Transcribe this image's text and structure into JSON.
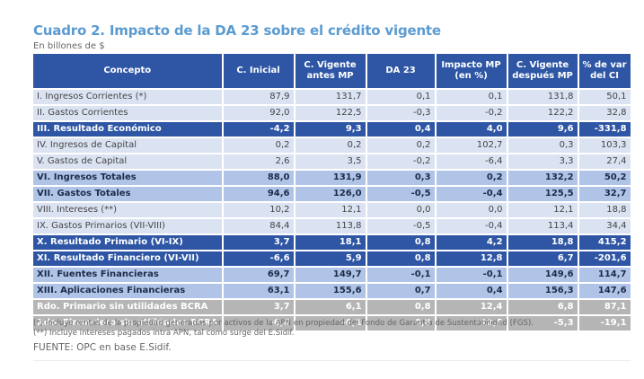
{
  "title": "Cuadro 2. Impacto de la DA 23 sobre el crédito vigente",
  "subtitle": "En billones de $",
  "table": {
    "headers": [
      "Concepto",
      "C. Inicial",
      "C. Vigente antes MP",
      "DA 23",
      "Impacto MP (en %)",
      "C. Vigente después MP",
      "% de var del CI"
    ],
    "rows": [
      {
        "style": "normal",
        "cells": [
          "I. Ingresos Corrientes (*)",
          "87,9",
          "131,7",
          "0,1",
          "0,1",
          "131,8",
          "50,1"
        ]
      },
      {
        "style": "normal",
        "cells": [
          "II. Gastos Corrientes",
          "92,0",
          "122,5",
          "-0,3",
          "-0,2",
          "122,2",
          "32,8"
        ]
      },
      {
        "style": "dark",
        "cells": [
          "III. Resultado Económico",
          "-4,2",
          "9,3",
          "0,4",
          "4,0",
          "9,6",
          "-331,8"
        ]
      },
      {
        "style": "normal",
        "cells": [
          "IV. Ingresos de Capital",
          "0,2",
          "0,2",
          "0,2",
          "102,7",
          "0,3",
          "103,3"
        ]
      },
      {
        "style": "normal",
        "cells": [
          "V. Gastos de Capital",
          "2,6",
          "3,5",
          "-0,2",
          "-6,4",
          "3,3",
          "27,4"
        ]
      },
      {
        "style": "sub",
        "cells": [
          "VI. Ingresos Totales",
          "88,0",
          "131,9",
          "0,3",
          "0,2",
          "132,2",
          "50,2"
        ]
      },
      {
        "style": "sub",
        "cells": [
          "VII. Gastos Totales",
          "94,6",
          "126,0",
          "-0,5",
          "-0,4",
          "125,5",
          "32,7"
        ]
      },
      {
        "style": "normal",
        "cells": [
          "VIII. Intereses (**)",
          "10,2",
          "12,1",
          "0,0",
          "0,0",
          "12,1",
          "18,8"
        ]
      },
      {
        "style": "normal",
        "cells": [
          "IX. Gastos Primarios (VII-VIII)",
          "84,4",
          "113,8",
          "-0,5",
          "-0,4",
          "113,4",
          "34,4"
        ]
      },
      {
        "style": "dark",
        "cells": [
          "X. Resultado Primario (VI-IX)",
          "3,7",
          "18,1",
          "0,8",
          "4,2",
          "18,8",
          "415,2"
        ]
      },
      {
        "style": "dark",
        "cells": [
          "XI. Resultado Financiero (VI-VII)",
          "-6,6",
          "5,9",
          "0,8",
          "12,8",
          "6,7",
          "-201,6"
        ]
      },
      {
        "style": "sub",
        "cells": [
          "XII. Fuentes Financieras",
          "69,7",
          "149,7",
          "-0,1",
          "-0,1",
          "149,6",
          "114,7"
        ]
      },
      {
        "style": "sub",
        "cells": [
          "XIII. Aplicaciones Financieras",
          "63,1",
          "155,6",
          "0,7",
          "0,4",
          "156,3",
          "147,6"
        ]
      },
      {
        "style": "grey",
        "cells": [
          "Rdo. Primario sin utilidades BCRA",
          "3,7",
          "6,1",
          "0,8",
          "12,4",
          "6,8",
          "87,1"
        ]
      },
      {
        "style": "grey",
        "cells": [
          "Rdo. Financiero sin utilidades BCRA",
          "-6,6",
          "-6,1",
          "0,8",
          "-12,5",
          "-5,3",
          "-19,1"
        ]
      }
    ]
  },
  "notes": [
    "(*) Incluye rentas de la propiedad generadas por activos de la APN en propiedad del Fondo de Garantía de Sustentabilidad (FGS).",
    "(**) Incluye intereses pagados intra APN, tal como surge del E.Sidif."
  ],
  "source": "FUENTE: OPC en base E.Sidif.",
  "colors": {
    "title": "#5b9bd1",
    "header_bg": "#2e56a5",
    "row_normal": "#dbe3f3",
    "row_subtotal": "#b0c4e7",
    "row_total": "#2e56a5",
    "row_grey": "#b5b5b5"
  }
}
